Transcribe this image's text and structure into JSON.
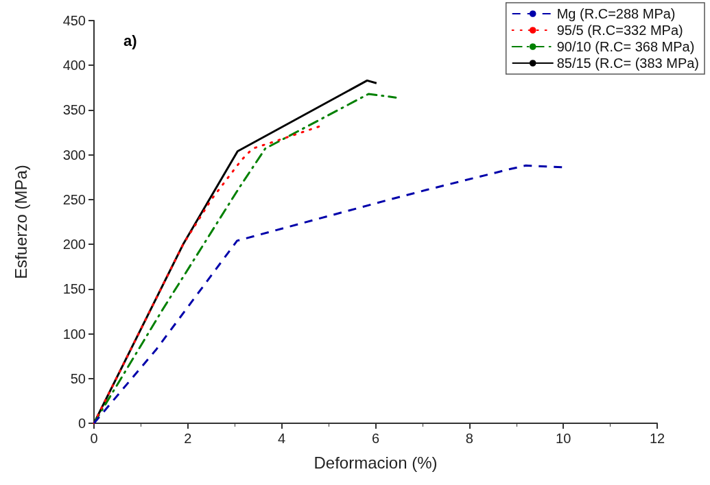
{
  "chart_data": {
    "type": "line",
    "xlabel": "Deformacion (%)",
    "ylabel": "Esfuerzo (MPa)",
    "annotations": [
      "a)"
    ],
    "xlim": [
      0,
      12
    ],
    "xticks": [
      0,
      2,
      4,
      6,
      8,
      10,
      12
    ],
    "ylim": [
      0,
      450
    ],
    "yticks": [
      0,
      50,
      100,
      150,
      200,
      250,
      300,
      350,
      400,
      450
    ],
    "grid": false,
    "legend": "top right",
    "marker": "none",
    "series": [
      {
        "name": "Mg (R.C=288 MPa)",
        "color": "#0000aa",
        "line_style": "dashed",
        "x": [
          0,
          1.32,
          3.05,
          6.23,
          7.1,
          8.86,
          9.2,
          10
        ],
        "values": [
          0,
          82,
          204,
          249,
          261,
          284,
          288,
          286
        ]
      },
      {
        "name": "95/5 (R.C=332 MPa)",
        "color": "#ff0000",
        "line_style": "dotted",
        "x": [
          0,
          1.9,
          2.5,
          3.14,
          3.38,
          3.74,
          4.82
        ],
        "values": [
          0,
          200,
          250,
          294,
          307,
          313,
          332
        ]
      },
      {
        "name": "90/10 (R.C= 368 MPa)",
        "color": "#008000",
        "line_style": "dashdot",
        "x": [
          0,
          1.45,
          3.08,
          3.65,
          5.85,
          6.43
        ],
        "values": [
          0,
          126,
          262,
          307,
          368,
          364
        ]
      },
      {
        "name": "85/15 (R.C= (383 MPa)",
        "color": "#000000",
        "line_style": "solid",
        "x": [
          0,
          1.9,
          3.06,
          5.82,
          6.02
        ],
        "values": [
          0,
          200,
          304,
          383,
          380
        ]
      }
    ]
  }
}
